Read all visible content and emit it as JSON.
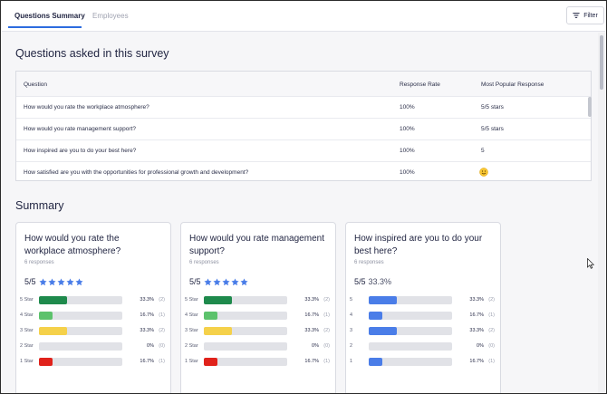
{
  "tabs": [
    {
      "label": "Questions Summary",
      "active": true
    },
    {
      "label": "Employees",
      "active": false
    }
  ],
  "filter_label": "Filter",
  "questions_section": {
    "title": "Questions asked in this survey",
    "headers": {
      "question": "Question",
      "response_rate": "Response Rate",
      "popular": "Most Popular Response"
    },
    "rows": [
      {
        "question": "How would you rate the workplace atmosphere?",
        "rate": "100%",
        "popular": "5/5 stars"
      },
      {
        "question": "How would you rate management support?",
        "rate": "100%",
        "popular": "5/5 stars"
      },
      {
        "question": "How inspired are you to do your best here?",
        "rate": "100%",
        "popular": "5"
      },
      {
        "question": "How satisfied are you with the opportunities for professional growth and development?",
        "rate": "100%",
        "popular": ""
      }
    ]
  },
  "summary": {
    "title": "Summary",
    "cards": [
      {
        "title": "How would you rate the workplace atmosphere?",
        "responses": "6 responses",
        "score": "5/5",
        "show_stars": true,
        "bars": [
          {
            "label": "5 Star",
            "pct": "33.3%",
            "count": "(2)",
            "value": 33.3,
            "color": "#1e8a4c"
          },
          {
            "label": "4 Star",
            "pct": "16.7%",
            "count": "(1)",
            "value": 16.7,
            "color": "#5cc26c"
          },
          {
            "label": "3 Star",
            "pct": "33.3%",
            "count": "(2)",
            "value": 33.3,
            "color": "#f5d14a"
          },
          {
            "label": "2 Star",
            "pct": "0%",
            "count": "(0)",
            "value": 0,
            "color": "#f0a23b"
          },
          {
            "label": "1 Star",
            "pct": "16.7%",
            "count": "(1)",
            "value": 16.7,
            "color": "#e0221b"
          }
        ]
      },
      {
        "title": "How would you rate management support?",
        "responses": "6 responses",
        "score": "5/5",
        "show_stars": true,
        "bars": [
          {
            "label": "5 Star",
            "pct": "33.3%",
            "count": "(2)",
            "value": 33.3,
            "color": "#1e8a4c"
          },
          {
            "label": "4 Star",
            "pct": "16.7%",
            "count": "(1)",
            "value": 16.7,
            "color": "#5cc26c"
          },
          {
            "label": "3 Star",
            "pct": "33.3%",
            "count": "(2)",
            "value": 33.3,
            "color": "#f5d14a"
          },
          {
            "label": "2 Star",
            "pct": "0%",
            "count": "(0)",
            "value": 0,
            "color": "#f0a23b"
          },
          {
            "label": "1 Star",
            "pct": "16.7%",
            "count": "(1)",
            "value": 16.7,
            "color": "#e0221b"
          }
        ]
      },
      {
        "title": "How inspired are you to do your best here?",
        "responses": "6 responses",
        "score": "5/5",
        "score_pct": "33.3%",
        "show_stars": false,
        "bars": [
          {
            "label": "5",
            "pct": "33.3%",
            "count": "(2)",
            "value": 33.3,
            "color": "#4a7de8"
          },
          {
            "label": "4",
            "pct": "16.7%",
            "count": "(1)",
            "value": 16.7,
            "color": "#4a7de8"
          },
          {
            "label": "3",
            "pct": "33.3%",
            "count": "(2)",
            "value": 33.3,
            "color": "#4a7de8"
          },
          {
            "label": "2",
            "pct": "0%",
            "count": "(0)",
            "value": 0,
            "color": "#4a7de8"
          },
          {
            "label": "1",
            "pct": "16.7%",
            "count": "(1)",
            "value": 16.7,
            "color": "#4a7de8"
          }
        ]
      }
    ]
  },
  "colors": {
    "accent": "#2d6cdf",
    "star": "#4a7de8"
  }
}
